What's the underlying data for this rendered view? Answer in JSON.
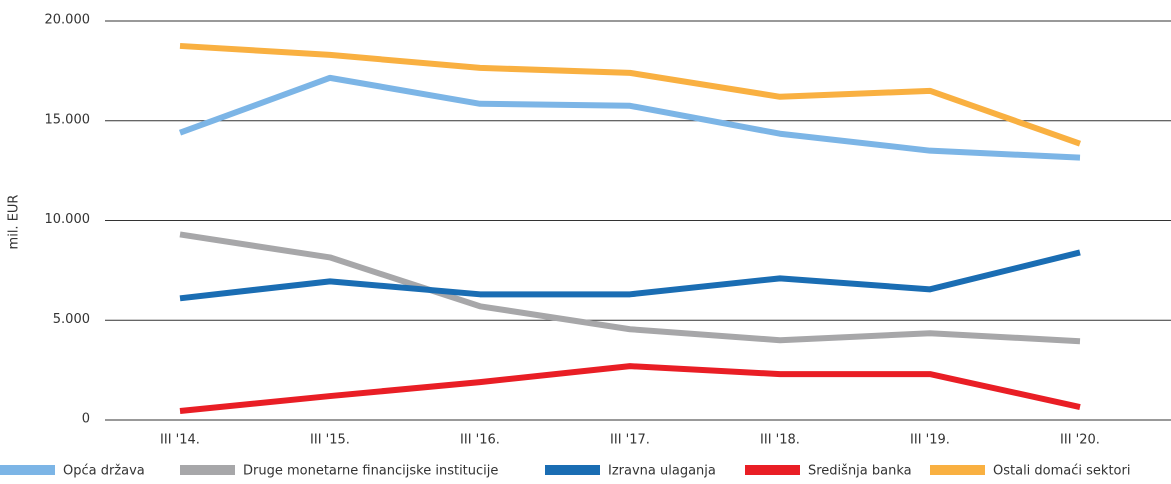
{
  "chart_data": {
    "type": "line",
    "y_label": "mil.  EUR",
    "categories": [
      "III '14.",
      "III '15.",
      "III '16.",
      "III '17.",
      "III '18.",
      "III '19.",
      "III '20."
    ],
    "series": [
      {
        "name": "Opća država",
        "color": "#7cb5e6",
        "values": [
          14400,
          17150,
          15850,
          15750,
          14350,
          13500,
          13150
        ]
      },
      {
        "name": "Druge monetarne financijske institucije",
        "color": "#a7a7a9",
        "values": [
          9300,
          8150,
          5700,
          4550,
          4000,
          4350,
          3950
        ]
      },
      {
        "name": "Izravna ulaganja",
        "color": "#1a6db3",
        "values": [
          6100,
          6950,
          6300,
          6300,
          7100,
          6550,
          8400
        ]
      },
      {
        "name": "Središnja banka",
        "color": "#e91e25",
        "values": [
          450,
          1200,
          1900,
          2700,
          2300,
          2300,
          650
        ]
      },
      {
        "name": "Ostali domaći sektori",
        "color": "#f9b041",
        "values": [
          18750,
          18300,
          17650,
          17400,
          16200,
          16500,
          13850
        ]
      }
    ],
    "ylim": [
      0,
      20000
    ],
    "yticks": [
      0,
      {
        "value": 5000,
        "label": "5.000"
      },
      {
        "value": 10000,
        "label": "10.000"
      },
      {
        "value": 15000,
        "label": "15.000"
      },
      {
        "value": 20000,
        "label": "20.000"
      }
    ],
    "grid": true,
    "legend": "bottom"
  }
}
